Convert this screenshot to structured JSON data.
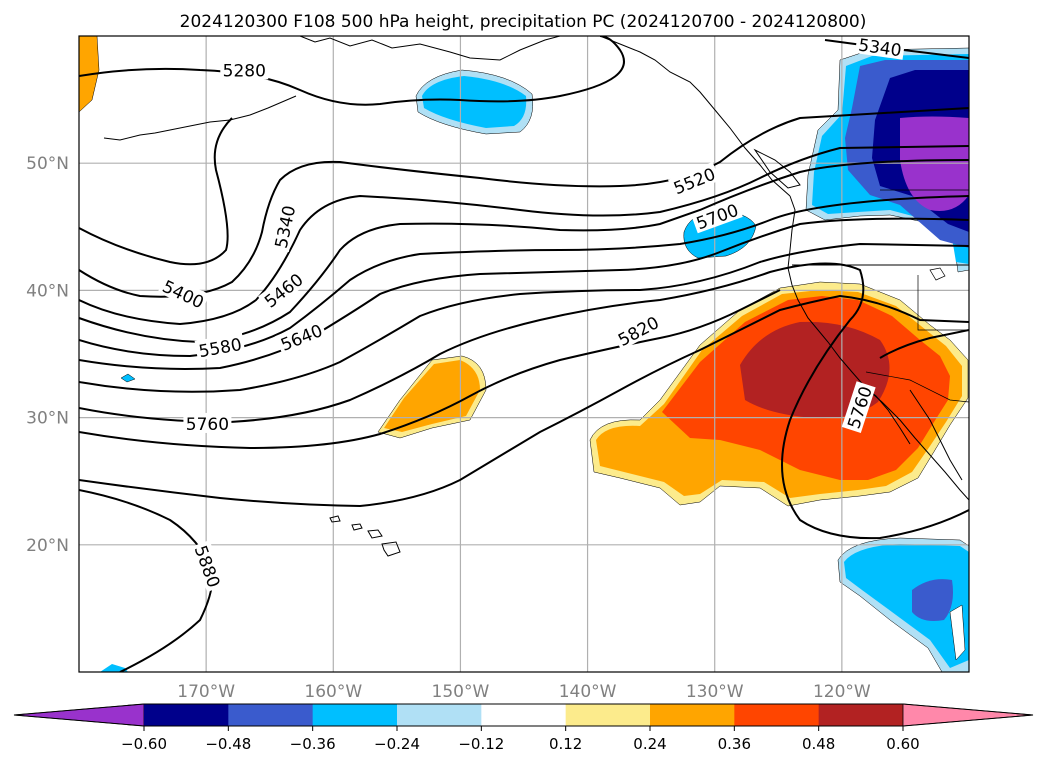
{
  "title": "2024120300 F108 500 hPa height, precipitation PC (2024120700 - 2024120800)",
  "map": {
    "lon_range": [
      -180,
      -110
    ],
    "lat_range": [
      10,
      60
    ],
    "lat_ticks": [
      {
        "lat": 20,
        "label": "20°N"
      },
      {
        "lat": 30,
        "label": "30°N"
      },
      {
        "lat": 40,
        "label": "40°N"
      },
      {
        "lat": 50,
        "label": "50°N"
      }
    ],
    "lon_ticks": [
      {
        "lon": -170,
        "label": "170°W"
      },
      {
        "lon": -160,
        "label": "160°W"
      },
      {
        "lon": -150,
        "label": "150°W"
      },
      {
        "lon": -140,
        "label": "140°W"
      },
      {
        "lon": -130,
        "label": "130°W"
      },
      {
        "lon": -120,
        "label": "120°W"
      }
    ],
    "grid": true,
    "tick_label_color": "#808080"
  },
  "height_contours": {
    "units": "gpm",
    "labels": [
      {
        "text": "5280",
        "lon": -167.0,
        "lat": 57.3,
        "angle": 0
      },
      {
        "text": "5340",
        "lon": -163.8,
        "lat": 45.0,
        "angle": -78
      },
      {
        "text": "5340",
        "lon": -117.0,
        "lat": 59.1,
        "angle": 8
      },
      {
        "text": "5400",
        "lon": -171.8,
        "lat": 39.7,
        "angle": 25
      },
      {
        "text": "5460",
        "lon": -163.9,
        "lat": 40.0,
        "angle": -38
      },
      {
        "text": "5520",
        "lon": -131.6,
        "lat": 48.6,
        "angle": -22
      },
      {
        "text": "5580",
        "lon": -168.9,
        "lat": 35.5,
        "angle": -10
      },
      {
        "text": "5640",
        "lon": -162.5,
        "lat": 36.3,
        "angle": -22
      },
      {
        "text": "5700",
        "lon": -129.8,
        "lat": 45.8,
        "angle": -20
      },
      {
        "text": "5760",
        "lon": -169.9,
        "lat": 29.5,
        "angle": 0
      },
      {
        "text": "5760",
        "lon": -118.6,
        "lat": 30.8,
        "angle": -72
      },
      {
        "text": "5820",
        "lon": -136.0,
        "lat": 36.8,
        "angle": -28
      },
      {
        "text": "5880",
        "lon": -169.9,
        "lat": 18.3,
        "angle": 70
      }
    ]
  },
  "colorbar": {
    "colors": [
      "#9932cc",
      "#00008b",
      "#3a5bcd",
      "#00bfff",
      "#b0e0f5",
      "#ffffff",
      "#fceb8c",
      "#ffa500",
      "#ff4500",
      "#b22222",
      "#ff88aa"
    ],
    "tick_labels": [
      "−0.60",
      "−0.48",
      "−0.36",
      "−0.24",
      "−0.12",
      "0.12",
      "0.24",
      "0.36",
      "0.48",
      "0.60"
    ]
  }
}
